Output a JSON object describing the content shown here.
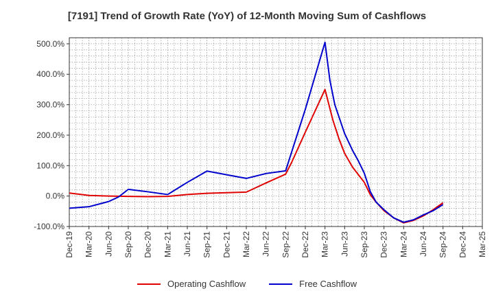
{
  "chart_data": {
    "type": "line",
    "title": "[7191]  Trend of Growth Rate (YoY) of 12-Month Moving Sum of Cashflows",
    "x": [
      "Dec-19",
      "Mar-20",
      "Jun-20",
      "Sep-20",
      "Dec-20",
      "Mar-21",
      "Jun-21",
      "Sep-21",
      "Dec-21",
      "Mar-22",
      "Jun-22",
      "Sep-22",
      "Dec-22",
      "Mar-23",
      "Jun-23",
      "Sep-23",
      "Dec-23",
      "Mar-24",
      "Jun-24",
      "Sep-24",
      "Dec-24",
      "Mar-25"
    ],
    "ylim": [
      -100,
      520
    ],
    "yticks": [
      -100,
      0,
      100,
      200,
      300,
      400,
      500
    ],
    "ytick_labels": [
      "-100.0%",
      "0.0%",
      "100.0%",
      "200.0%",
      "300.0%",
      "400.0%",
      "500.0%"
    ],
    "grid": true,
    "legend_position": "bottom",
    "series": [
      {
        "name": "Operating Cashflow",
        "color": "#e00000",
        "points": [
          [
            0,
            10
          ],
          [
            1,
            2
          ],
          [
            2,
            0
          ],
          [
            3,
            -1
          ],
          [
            4,
            -2
          ],
          [
            5,
            -1
          ],
          [
            6,
            5
          ],
          [
            7,
            9
          ],
          [
            8,
            11
          ],
          [
            9,
            13
          ],
          [
            10,
            43
          ],
          [
            11,
            72
          ],
          [
            11.3,
            110
          ],
          [
            12,
            210
          ],
          [
            13,
            350
          ],
          [
            13.4,
            250
          ],
          [
            13.7,
            190
          ],
          [
            14,
            140
          ],
          [
            14.4,
            95
          ],
          [
            14.7,
            70
          ],
          [
            15,
            45
          ],
          [
            15.3,
            5
          ],
          [
            15.6,
            -20
          ],
          [
            16,
            -48
          ],
          [
            16.5,
            -72
          ],
          [
            17,
            -88
          ],
          [
            17.5,
            -80
          ],
          [
            18,
            -65
          ],
          [
            18.5,
            -45
          ],
          [
            19,
            -22
          ]
        ]
      },
      {
        "name": "Free Cashflow",
        "color": "#0000cc",
        "points": [
          [
            0,
            -40
          ],
          [
            1,
            -35
          ],
          [
            2,
            -18
          ],
          [
            2.5,
            -3
          ],
          [
            3,
            22
          ],
          [
            4,
            14
          ],
          [
            5,
            5
          ],
          [
            6,
            45
          ],
          [
            7,
            82
          ],
          [
            8,
            70
          ],
          [
            9,
            58
          ],
          [
            10,
            74
          ],
          [
            11,
            83
          ],
          [
            12,
            285
          ],
          [
            13,
            505
          ],
          [
            13.25,
            380
          ],
          [
            13.5,
            300
          ],
          [
            14,
            205
          ],
          [
            14.4,
            150
          ],
          [
            14.7,
            115
          ],
          [
            15,
            75
          ],
          [
            15.3,
            15
          ],
          [
            15.6,
            -20
          ],
          [
            16,
            -45
          ],
          [
            16.5,
            -72
          ],
          [
            17,
            -86
          ],
          [
            17.5,
            -78
          ],
          [
            18,
            -62
          ],
          [
            18.5,
            -48
          ],
          [
            19,
            -28
          ]
        ]
      }
    ]
  }
}
